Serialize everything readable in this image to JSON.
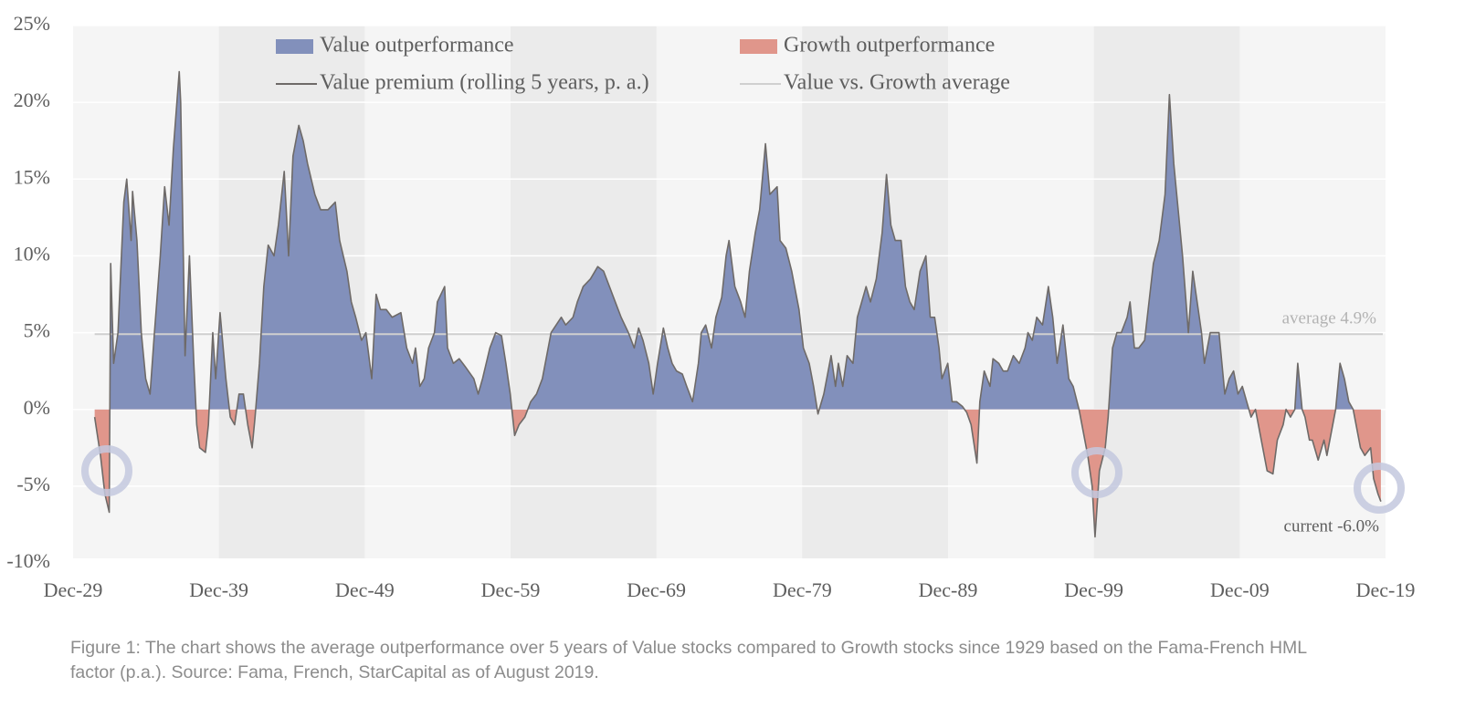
{
  "chart_data": {
    "type": "area",
    "xlim": [
      1929.92,
      2019.92
    ],
    "xticks": [
      {
        "value": 1929.92,
        "label": "Dec-29"
      },
      {
        "value": 1939.92,
        "label": "Dec-39"
      },
      {
        "value": 1949.92,
        "label": "Dec-49"
      },
      {
        "value": 1959.92,
        "label": "Dec-59"
      },
      {
        "value": 1969.92,
        "label": "Dec-69"
      },
      {
        "value": 1979.92,
        "label": "Dec-79"
      },
      {
        "value": 1989.92,
        "label": "Dec-89"
      },
      {
        "value": 1999.92,
        "label": "Dec-99"
      },
      {
        "value": 2009.92,
        "label": "Dec-09"
      },
      {
        "value": 2019.92,
        "label": "Dec-19"
      }
    ],
    "ylim": [
      -10,
      25
    ],
    "yticks": [
      {
        "value": -10,
        "label": "-10%"
      },
      {
        "value": -5,
        "label": "-5%"
      },
      {
        "value": 0,
        "label": "0%"
      },
      {
        "value": 5,
        "label": "5%"
      },
      {
        "value": 10,
        "label": "10%"
      },
      {
        "value": 15,
        "label": "15%"
      },
      {
        "value": 20,
        "label": "20%"
      },
      {
        "value": 25,
        "label": "25%"
      }
    ],
    "grid": true,
    "alternating_bands": true,
    "area_fills": [
      {
        "name": "Value outperformance",
        "color": "#8290bb"
      },
      {
        "name": "Growth outperformance",
        "color": "#e0968b"
      }
    ],
    "reference_line": {
      "name": "Value vs. Growth average",
      "color": "#cfcfcf",
      "value": 4.9,
      "label": "average 4.9%"
    },
    "annotation": "current -6.0%",
    "caption": [
      "Figure 1: The chart shows the average outperformance over 5 years of Value stocks compared to Growth stocks since 1929 based on the Fama-French HML",
      "factor (p.a.). Source: Fama, French, StarCapital as of August 2019."
    ],
    "x": [
      1931.4,
      1931.8,
      1932.1,
      1932.4,
      1932.5,
      1932.7,
      1933.0,
      1933.4,
      1933.6,
      1933.9,
      1934.0,
      1934.3,
      1934.6,
      1934.9,
      1935.2,
      1935.5,
      1935.9,
      1936.2,
      1936.5,
      1936.8,
      1937.2,
      1937.3,
      1937.6,
      1937.9,
      1938.2,
      1938.4,
      1938.6,
      1939.0,
      1939.2,
      1939.5,
      1939.7,
      1940.0,
      1940.4,
      1940.7,
      1941.0,
      1941.3,
      1941.6,
      1941.9,
      1942.2,
      1942.4,
      1942.7,
      1943.0,
      1943.3,
      1943.7,
      1944.0,
      1944.4,
      1944.7,
      1945.0,
      1945.4,
      1945.7,
      1946.0,
      1946.5,
      1946.9,
      1947.4,
      1947.9,
      1948.2,
      1948.7,
      1949.0,
      1949.3,
      1949.7,
      1950.0,
      1950.4,
      1950.7,
      1951.0,
      1951.4,
      1951.8,
      1952.4,
      1952.8,
      1953.2,
      1953.4,
      1953.7,
      1954.0,
      1954.3,
      1954.7,
      1954.9,
      1955.4,
      1955.6,
      1956.0,
      1956.4,
      1956.8,
      1957.4,
      1957.7,
      1958.0,
      1958.5,
      1958.9,
      1959.3,
      1959.6,
      1959.9,
      1960.2,
      1960.5,
      1960.9,
      1961.3,
      1961.7,
      1962.1,
      1962.4,
      1962.7,
      1963.4,
      1963.7,
      1964.2,
      1964.5,
      1964.9,
      1965.4,
      1965.9,
      1966.3,
      1966.7,
      1967.1,
      1967.5,
      1968.0,
      1968.4,
      1968.7,
      1969.0,
      1969.4,
      1969.7,
      1970.0,
      1970.4,
      1970.7,
      1971.0,
      1971.3,
      1971.7,
      1972.0,
      1972.4,
      1972.8,
      1973.0,
      1973.3,
      1973.7,
      1974.0,
      1974.4,
      1974.7,
      1974.9,
      1975.3,
      1975.7,
      1976.0,
      1976.3,
      1976.7,
      1977.0,
      1977.4,
      1977.7,
      1978.2,
      1978.4,
      1978.8,
      1979.2,
      1979.4,
      1979.7,
      1980.0,
      1980.4,
      1980.7,
      1981.0,
      1981.4,
      1981.6,
      1981.9,
      1982.2,
      1982.4,
      1982.7,
      1983.0,
      1983.4,
      1983.7,
      1984.0,
      1984.3,
      1984.6,
      1985.0,
      1985.4,
      1985.7,
      1986.0,
      1986.3,
      1986.7,
      1987.0,
      1987.3,
      1987.6,
      1988.0,
      1988.4,
      1988.7,
      1989.0,
      1989.3,
      1989.5,
      1989.9,
      1990.2,
      1990.5,
      1990.9,
      1991.2,
      1991.5,
      1991.9,
      1992.1,
      1992.4,
      1992.8,
      1993.0,
      1993.4,
      1993.7,
      1994.0,
      1994.4,
      1994.8,
      1995.2,
      1995.4,
      1995.7,
      1996.0,
      1996.4,
      1996.8,
      1997.1,
      1997.4,
      1997.8,
      1998.2,
      1998.5,
      1998.9,
      1999.2,
      1999.5,
      1999.8,
      2000.0,
      2000.3,
      2000.7,
      2000.9,
      2001.2,
      2001.5,
      2001.8,
      2002.2,
      2002.4,
      2002.7,
      2003.0,
      2003.4,
      2003.7,
      2004.0,
      2004.4,
      2004.8,
      2005.1,
      2005.4,
      2005.7,
      2006.0,
      2006.4,
      2006.7,
      2007.0,
      2007.3,
      2007.5,
      2007.9,
      2008.2,
      2008.5,
      2008.9,
      2009.2,
      2009.5,
      2009.8,
      2010.1,
      2010.4,
      2010.7,
      2011.0,
      2011.4,
      2011.8,
      2012.2,
      2012.5,
      2012.9,
      2013.1,
      2013.4,
      2013.7,
      2013.9,
      2014.2,
      2014.4,
      2014.7,
      2014.9,
      2015.3,
      2015.7,
      2015.9,
      2016.2,
      2016.5,
      2016.8,
      2017.1,
      2017.4,
      2017.7,
      2017.9,
      2018.2,
      2018.5,
      2018.9,
      2019.1,
      2019.4,
      2019.6
    ],
    "series": [
      {
        "name": "Value premium (rolling 5 years, p. a.)",
        "color": "#6e6a68",
        "values": [
          -0.5,
          -3,
          -5.5,
          -6.7,
          9.5,
          3,
          5,
          13.5,
          15,
          11,
          14.2,
          11,
          5,
          2,
          1,
          5,
          10,
          14.5,
          12,
          17,
          22,
          20,
          3.5,
          10,
          3,
          -1,
          -2.5,
          -2.8,
          -1,
          5,
          2,
          6.3,
          2,
          -0.5,
          -1,
          1,
          1,
          -1,
          -2.5,
          -0.5,
          3,
          8,
          10.7,
          10,
          12,
          15.5,
          10,
          16.5,
          18.5,
          17.5,
          16,
          14,
          13,
          13,
          13.5,
          11,
          9,
          7,
          6,
          4.5,
          5,
          2,
          7.5,
          6.5,
          6.5,
          6,
          6.3,
          4,
          3,
          4,
          1.5,
          2,
          4,
          5,
          7,
          8,
          4,
          3,
          3.3,
          2.8,
          2,
          1,
          2,
          4,
          5,
          4.8,
          3,
          1,
          -1.7,
          -1,
          -0.5,
          0.5,
          1,
          2,
          3.5,
          5,
          6,
          5.5,
          6,
          7,
          8,
          8.5,
          9.3,
          9,
          8,
          7,
          6,
          5,
          4,
          5.3,
          4.5,
          3,
          1,
          3,
          5.3,
          4,
          3,
          2.5,
          2.3,
          1.5,
          0.5,
          3,
          5,
          5.5,
          4,
          6,
          7.3,
          10,
          11,
          8,
          7,
          6,
          9,
          11.5,
          13,
          17.3,
          14,
          14.5,
          11,
          10.5,
          9,
          8,
          6.5,
          4,
          3,
          1.5,
          -0.3,
          1,
          2,
          3.5,
          1.5,
          3,
          1.5,
          3.5,
          3,
          6,
          7,
          8,
          7,
          8.5,
          11.5,
          15.3,
          12,
          11,
          11,
          8,
          7,
          6.5,
          9,
          10,
          6,
          6,
          4,
          2,
          3,
          0.5,
          0.5,
          0.2,
          -0.2,
          -1,
          -3.5,
          0.5,
          2.5,
          1.5,
          3.3,
          3,
          2.5,
          2.5,
          3.5,
          3,
          4,
          5,
          4.5,
          6,
          5.5,
          8,
          6,
          3,
          5.5,
          2,
          1.5,
          0,
          -1.5,
          -3,
          -5,
          -8.3,
          -4,
          -2.5,
          -0.5,
          4,
          5,
          5,
          6,
          7,
          4,
          4,
          4.5,
          7,
          9.5,
          11,
          14,
          20.5,
          16,
          13,
          10,
          5,
          9,
          7,
          5,
          3,
          5,
          5,
          5,
          1,
          2,
          2.5,
          1,
          1.5,
          0.5,
          -0.5,
          0,
          -2,
          -4,
          -4.2,
          -2,
          -1,
          0,
          -0.5,
          0,
          3,
          0,
          -0.5,
          -2,
          -2,
          -3.3,
          -2,
          -3,
          -1.5,
          0,
          3,
          2,
          0.5,
          0,
          -1,
          -2.5,
          -3,
          -2.5,
          -4.5,
          -5.5,
          -6
        ]
      }
    ]
  }
}
